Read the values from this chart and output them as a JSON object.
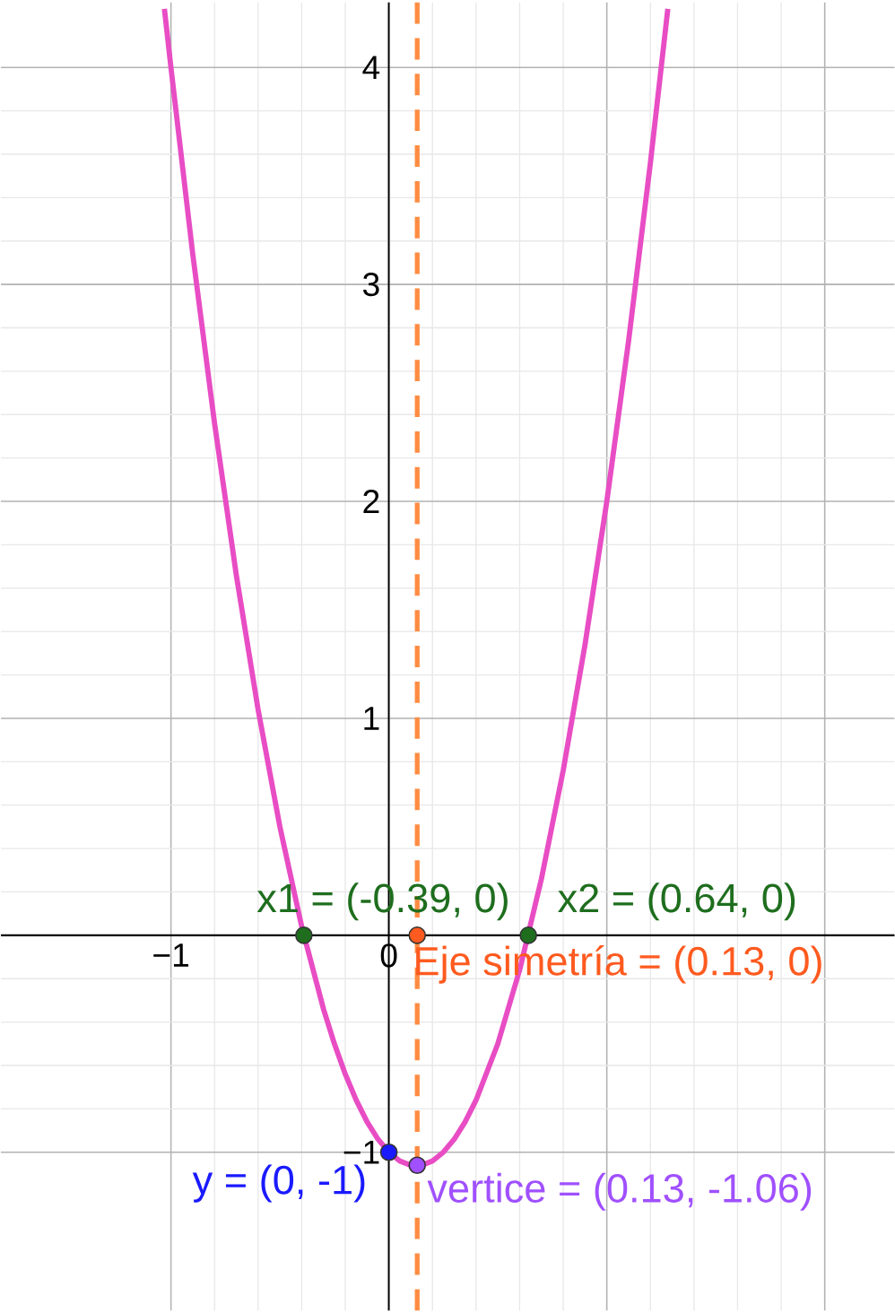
{
  "chart_data": {
    "type": "line",
    "xlim": [
      -1.78,
      2.32
    ],
    "ylim": [
      -1.73,
      4.3
    ],
    "xticks": [
      {
        "value": -1,
        "label": "−1"
      },
      {
        "value": 0,
        "label": "0"
      },
      {
        "value": 1,
        "label": null
      },
      {
        "value": 2,
        "label": null
      }
    ],
    "yticks": [
      {
        "value": -1,
        "label": "−1"
      },
      {
        "value": 0,
        "label": null
      },
      {
        "value": 1,
        "label": "1"
      },
      {
        "value": 2,
        "label": "2"
      },
      {
        "value": 3,
        "label": "3"
      },
      {
        "value": 4,
        "label": "4"
      }
    ],
    "grid": true,
    "ref_lines": [
      {
        "axis": "x",
        "value": 0.13,
        "color": "#ff8c42",
        "line_style": "dashed"
      }
    ],
    "series": [
      {
        "marker": "none",
        "color": "#e84dc4",
        "x": [
          -1.03,
          -1.0,
          -0.9,
          -0.8,
          -0.7,
          -0.6,
          -0.5,
          -0.4,
          -0.3,
          -0.25,
          -0.2,
          -0.15,
          -0.1,
          -0.05,
          0,
          0.05,
          0.1,
          0.15,
          0.2,
          0.25,
          0.3,
          0.35,
          0.4,
          0.5,
          0.6,
          0.7,
          0.8,
          0.9,
          1.0,
          1.1,
          1.2,
          1.28
        ],
        "values": [
          4.27,
          4,
          3.14,
          2.36,
          1.66,
          1.04,
          0.5,
          0.04,
          -0.34,
          -0.5,
          -0.64,
          -0.76,
          -0.86,
          -0.94,
          -1,
          -1.04,
          -1.06,
          -1.06,
          -1.04,
          -1.0,
          -0.94,
          -0.86,
          -0.76,
          -0.5,
          -0.16,
          0.26,
          0.76,
          1.34,
          2,
          2.74,
          3.56,
          4.27
        ]
      },
      {
        "type": "scatter",
        "name": "x1 = (-0.39, 0)",
        "color": "#1e6e1e",
        "x": [
          -0.39
        ],
        "values": [
          0
        ]
      },
      {
        "type": "scatter",
        "name": "x2 = (0.64, 0)",
        "color": "#1e6e1e",
        "x": [
          0.64
        ],
        "values": [
          0
        ]
      },
      {
        "type": "scatter",
        "name": "Eje simetría = (0.13, 0)",
        "color": "#ff5a1f",
        "x": [
          0.13
        ],
        "values": [
          0
        ]
      },
      {
        "type": "scatter",
        "name": "y = (0, -1)",
        "color": "#1a1aff",
        "x": [
          0
        ],
        "values": [
          -1
        ]
      },
      {
        "type": "scatter",
        "name": "vertice = (0.13, -1.06)",
        "color": "#a050ff",
        "x": [
          0.13
        ],
        "values": [
          -1.06
        ]
      }
    ],
    "marker": "circle"
  }
}
